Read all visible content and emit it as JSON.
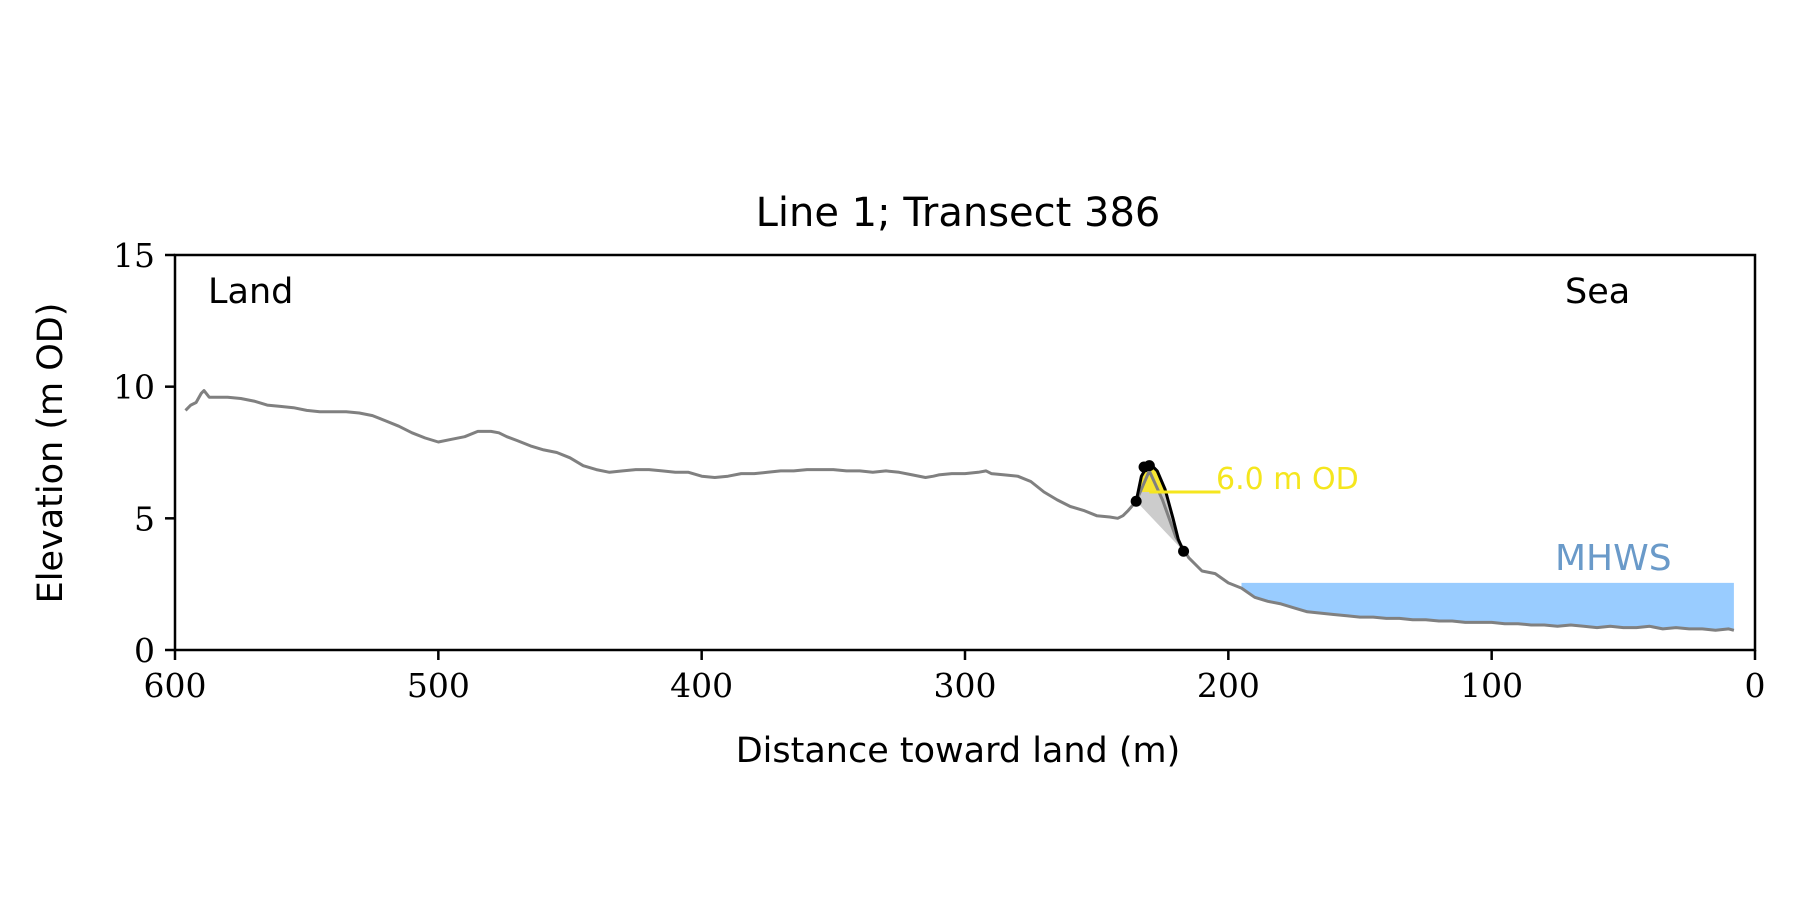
{
  "chart_data": {
    "type": "line",
    "title": "Line 1; Transect 386",
    "xlabel": "Distance toward land (m)",
    "ylabel": "Elevation (m OD)",
    "xlim": [
      600,
      0
    ],
    "ylim": [
      0,
      15
    ],
    "x_ticks": [
      600,
      500,
      400,
      300,
      200,
      100,
      0
    ],
    "y_ticks": [
      0,
      5,
      10,
      15
    ],
    "grid": false,
    "legend": "none",
    "annotations": {
      "land": "Land",
      "sea": "Sea",
      "mhws_label": "MHWS",
      "threshold_label": "6.0 m OD"
    },
    "colors": {
      "profile": "#808080",
      "dune": "#000000",
      "mhws_fill": "#99ccff",
      "mhws_text": "#6a9ac9",
      "threshold": "#f5e61e",
      "threshold_fill": "#f7e532",
      "dune_fill": "#cccccc"
    },
    "series": [
      {
        "x": [
          596,
          594,
          592,
          590,
          589,
          587,
          585,
          583,
          580,
          575,
          570,
          565,
          560,
          555,
          550,
          545,
          540,
          535,
          530,
          525,
          520,
          515,
          510,
          505,
          500,
          495,
          490,
          485,
          480,
          477,
          474,
          470,
          465,
          460,
          455,
          450,
          445,
          440,
          435,
          430,
          425,
          420,
          415,
          410,
          405,
          400,
          395,
          390,
          385,
          380,
          375,
          370,
          365,
          360,
          355,
          350,
          345,
          340,
          335,
          330,
          325,
          320,
          315,
          312,
          310,
          305,
          300,
          295,
          292,
          290,
          285,
          280,
          275,
          270,
          265,
          260,
          255,
          250,
          245,
          242,
          240,
          238,
          235,
          230,
          225,
          220,
          215,
          210,
          205,
          200,
          195,
          190,
          185,
          180,
          175,
          170,
          165,
          160,
          155,
          150,
          145,
          140,
          135,
          130,
          125,
          120,
          115,
          110,
          105,
          100,
          95,
          90,
          85,
          80,
          75,
          70,
          65,
          60,
          55,
          50,
          45,
          40,
          35,
          30,
          25,
          20,
          15,
          10,
          8
        ],
        "y": [
          9.1,
          9.3,
          9.4,
          9.75,
          9.85,
          9.6,
          9.6,
          9.6,
          9.6,
          9.55,
          9.45,
          9.3,
          9.25,
          9.2,
          9.1,
          9.05,
          9.05,
          9.05,
          9.0,
          8.9,
          8.7,
          8.5,
          8.25,
          8.05,
          7.9,
          8.0,
          8.1,
          8.3,
          8.3,
          8.25,
          8.1,
          7.95,
          7.75,
          7.6,
          7.5,
          7.3,
          7.0,
          6.85,
          6.75,
          6.8,
          6.85,
          6.85,
          6.8,
          6.75,
          6.75,
          6.6,
          6.55,
          6.6,
          6.7,
          6.7,
          6.75,
          6.8,
          6.8,
          6.85,
          6.85,
          6.85,
          6.8,
          6.8,
          6.75,
          6.8,
          6.75,
          6.65,
          6.55,
          6.6,
          6.65,
          6.7,
          6.7,
          6.75,
          6.8,
          6.7,
          6.65,
          6.6,
          6.4,
          6.0,
          5.7,
          5.45,
          5.3,
          5.1,
          5.05,
          5.0,
          5.1,
          5.3,
          5.65,
          6.8,
          5.7,
          4.3,
          3.5,
          3.0,
          2.9,
          2.55,
          2.35,
          2.0,
          1.85,
          1.75,
          1.6,
          1.45,
          1.4,
          1.35,
          1.3,
          1.25,
          1.25,
          1.2,
          1.2,
          1.15,
          1.15,
          1.1,
          1.1,
          1.05,
          1.05,
          1.05,
          1.0,
          1.0,
          0.95,
          0.95,
          0.9,
          0.95,
          0.9,
          0.85,
          0.9,
          0.85,
          0.85,
          0.9,
          0.8,
          0.85,
          0.8,
          0.8,
          0.75,
          0.8,
          0.75
        ]
      },
      {
        "x": [
          235,
          233,
          231,
          229,
          227,
          224,
          221,
          219,
          217
        ],
        "y": [
          5.65,
          6.6,
          6.95,
          7.0,
          6.8,
          6.1,
          5.0,
          4.2,
          3.75
        ]
      }
    ],
    "dune_points": {
      "x": [
        235,
        232,
        230,
        217
      ],
      "y": [
        5.65,
        6.95,
        7.0,
        3.75
      ]
    },
    "threshold": {
      "y": 6.0,
      "x_start": 230,
      "x_end": 203
    },
    "mhws": {
      "level": 2.55,
      "x_start": 195,
      "x_end": 8
    }
  }
}
